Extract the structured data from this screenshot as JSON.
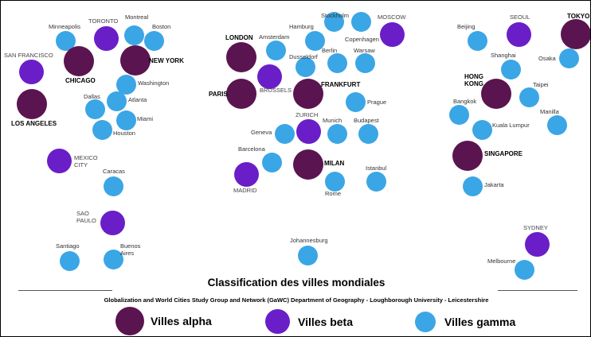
{
  "colors": {
    "alpha": "#5a1450",
    "beta": "#6a1ec8",
    "gamma": "#3aa6e6"
  },
  "cities": [
    {
      "name": "San Francisco",
      "label": "SAN FRANCISCO",
      "tier": "beta"
    },
    {
      "name": "Minneapolis",
      "label": "Minneapolis",
      "tier": "gamma"
    },
    {
      "name": "Toronto",
      "label": "TORONTO",
      "tier": "beta"
    },
    {
      "name": "Montreal",
      "label": "Montreal",
      "tier": "gamma"
    },
    {
      "name": "Boston",
      "label": "Boston",
      "tier": "gamma"
    },
    {
      "name": "Chicago",
      "label": "CHICAGO",
      "tier": "alpha"
    },
    {
      "name": "New York",
      "label": "NEW YORK",
      "tier": "alpha"
    },
    {
      "name": "Washington",
      "label": "Washington",
      "tier": "gamma"
    },
    {
      "name": "Los Angeles",
      "label": "LOS ANGELES",
      "tier": "alpha"
    },
    {
      "name": "Dallas",
      "label": "Dallas",
      "tier": "gamma"
    },
    {
      "name": "Atlanta",
      "label": "Atlanta",
      "tier": "gamma"
    },
    {
      "name": "Miami",
      "label": "Miami",
      "tier": "gamma"
    },
    {
      "name": "Houston",
      "label": "Houston",
      "tier": "gamma"
    },
    {
      "name": "Mexico City",
      "label": "MEXICO\nCITY",
      "tier": "beta"
    },
    {
      "name": "Caracas",
      "label": "Caracas",
      "tier": "gamma"
    },
    {
      "name": "Sao Paulo",
      "label": "SAO\nPAULO",
      "tier": "beta"
    },
    {
      "name": "Santiago",
      "label": "Santiago",
      "tier": "gamma"
    },
    {
      "name": "Buenos Aires",
      "label": "Buenos\nAires",
      "tier": "gamma"
    },
    {
      "name": "London",
      "label": "LONDON",
      "tier": "alpha"
    },
    {
      "name": "Amsterdam",
      "label": "Amsterdam",
      "tier": "gamma"
    },
    {
      "name": "Hamburg",
      "label": "Hamburg",
      "tier": "gamma"
    },
    {
      "name": "Stockholm",
      "label": "Stockholm",
      "tier": "gamma"
    },
    {
      "name": "Copenhagen",
      "label": "Copenhagen",
      "tier": "gamma"
    },
    {
      "name": "Moscow",
      "label": "MOSCOW",
      "tier": "beta"
    },
    {
      "name": "Dusseldorf",
      "label": "Dusseldorf",
      "tier": "gamma"
    },
    {
      "name": "Berlin",
      "label": "Berlin",
      "tier": "gamma"
    },
    {
      "name": "Warsaw",
      "label": "Warsaw",
      "tier": "gamma"
    },
    {
      "name": "Paris",
      "label": "PARIS",
      "tier": "alpha"
    },
    {
      "name": "Brussels",
      "label": "BRUSSELS",
      "tier": "beta"
    },
    {
      "name": "Frankfurt",
      "label": "FRANKFURT",
      "tier": "alpha"
    },
    {
      "name": "Prague",
      "label": "Prague",
      "tier": "gamma"
    },
    {
      "name": "Zurich",
      "label": "ZURICH",
      "tier": "beta"
    },
    {
      "name": "Geneva",
      "label": "Geneva",
      "tier": "gamma"
    },
    {
      "name": "Munich",
      "label": "Munich",
      "tier": "gamma"
    },
    {
      "name": "Budapest",
      "label": "Budapest",
      "tier": "gamma"
    },
    {
      "name": "Barcelona",
      "label": "Barcelona",
      "tier": "gamma"
    },
    {
      "name": "Milan",
      "label": "MILAN",
      "tier": "alpha"
    },
    {
      "name": "Madrid",
      "label": "MADRID",
      "tier": "beta"
    },
    {
      "name": "Rome",
      "label": "Rome",
      "tier": "gamma"
    },
    {
      "name": "Istanbul",
      "label": "Istanbul",
      "tier": "gamma"
    },
    {
      "name": "Johannesburg",
      "label": "Johannesburg",
      "tier": "gamma"
    },
    {
      "name": "Beijing",
      "label": "Beijing",
      "tier": "gamma"
    },
    {
      "name": "Seoul",
      "label": "SEOUL",
      "tier": "beta"
    },
    {
      "name": "Tokyo",
      "label": "TOKYO",
      "tier": "alpha"
    },
    {
      "name": "Shanghai",
      "label": "Shanghai",
      "tier": "gamma"
    },
    {
      "name": "Osaka",
      "label": "Osaka",
      "tier": "gamma"
    },
    {
      "name": "Hong Kong",
      "label": "HONG\nKONG",
      "tier": "alpha"
    },
    {
      "name": "Taipei",
      "label": "Taipei",
      "tier": "gamma"
    },
    {
      "name": "Bangkok",
      "label": "Bangkok",
      "tier": "gamma"
    },
    {
      "name": "Manilla",
      "label": "Manilla",
      "tier": "gamma"
    },
    {
      "name": "Kuala Lumpur",
      "label": "Kuala Lumpur",
      "tier": "gamma"
    },
    {
      "name": "Singapore",
      "label": "SINGAPORE",
      "tier": "alpha"
    },
    {
      "name": "Jakarta",
      "label": "Jakarta",
      "tier": "gamma"
    },
    {
      "name": "Sydney",
      "label": "SYDNEY",
      "tier": "beta"
    },
    {
      "name": "Melbourne",
      "label": "Melbourne",
      "tier": "gamma"
    }
  ],
  "title": "Classification des villes mondiales",
  "subtitle": "Globalization and World Cities Study Group and Network (GaWC) Department of Geography - Loughborough University - Leicestershire",
  "legend": [
    {
      "tier": "alpha",
      "label": "Villes alpha"
    },
    {
      "tier": "beta",
      "label": "Villes beta"
    },
    {
      "tier": "gamma",
      "label": "Villes gamma"
    }
  ]
}
